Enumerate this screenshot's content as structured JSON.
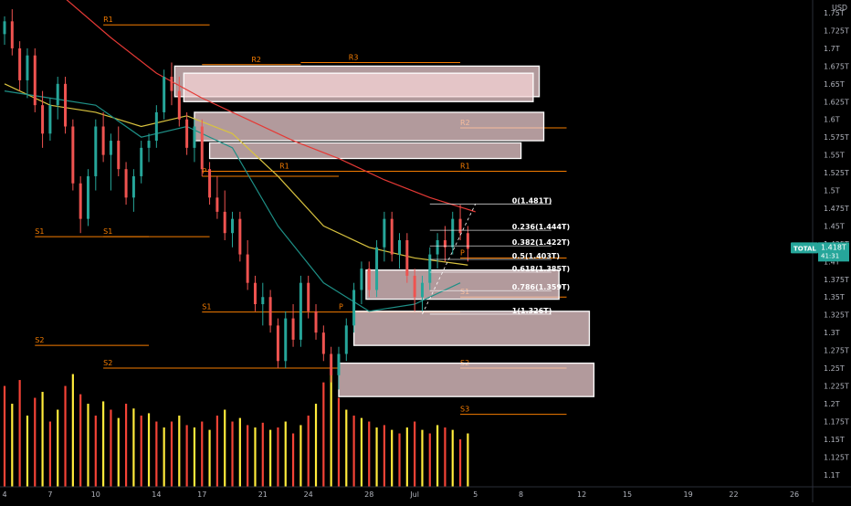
{
  "colors": {
    "background": "#000000",
    "up": "#26a69a",
    "down": "#ef5350",
    "level_line": "#f57c00",
    "level_text": "#f57c00",
    "zone_fill": "#f6d5d8",
    "zone_stroke": "#ffffff",
    "ma_yellow": "#d9c33f",
    "ma_teal": "#1e8f86",
    "ma_red": "#e53935",
    "vol_red": "#f44336",
    "vol_yellow": "#ffeb3b",
    "axis_text": "#b2b5be",
    "fib_text": "#ffffff",
    "fib_line": "#ffffff",
    "tag_bg": "#26a69a"
  },
  "chart_data": {
    "type": "candlestick",
    "currency": "USD",
    "y_axis": {
      "ticks": [
        "1.1T",
        "1.125T",
        "1.15T",
        "1.175T",
        "1.2T",
        "1.225T",
        "1.25T",
        "1.275T",
        "1.3T",
        "1.325T",
        "1.35T",
        "1.375T",
        "1.4T",
        "1.425T",
        "1.45T",
        "1.475T",
        "1.5T",
        "1.525T",
        "1.55T",
        "1.575T",
        "1.6T",
        "1.625T",
        "1.65T",
        "1.675T",
        "1.7T",
        "1.725T",
        "1.75T"
      ],
      "values": [
        1.1,
        1.125,
        1.15,
        1.175,
        1.2,
        1.225,
        1.25,
        1.275,
        1.3,
        1.325,
        1.35,
        1.375,
        1.4,
        1.425,
        1.45,
        1.475,
        1.5,
        1.525,
        1.55,
        1.575,
        1.6,
        1.625,
        1.65,
        1.675,
        1.7,
        1.725,
        1.75
      ],
      "range": [
        1.083,
        1.768
      ]
    },
    "x_axis": {
      "ticks": [
        "4",
        "7",
        "10",
        "14",
        "17",
        "21",
        "24",
        "28",
        "Jul",
        "5",
        "8",
        "12",
        "15",
        "19",
        "22",
        "26"
      ],
      "day_index": [
        0,
        3,
        6,
        10,
        13,
        17,
        20,
        24,
        27,
        31,
        34,
        38,
        41,
        45,
        48,
        52
      ],
      "range_days": [
        -0.3,
        53.2
      ]
    },
    "symbol_tag": {
      "name": "TOTAL",
      "value": "1.418T",
      "countdown": "41:31",
      "price": 1.418
    },
    "candles": [
      [
        0.0,
        1.72,
        1.745,
        1.705,
        1.738
      ],
      [
        0.5,
        1.738,
        1.755,
        1.69,
        1.7
      ],
      [
        1.0,
        1.7,
        1.71,
        1.64,
        1.655
      ],
      [
        1.5,
        1.655,
        1.7,
        1.63,
        1.69
      ],
      [
        2.0,
        1.69,
        1.7,
        1.61,
        1.62
      ],
      [
        2.5,
        1.62,
        1.64,
        1.56,
        1.58
      ],
      [
        3.0,
        1.58,
        1.63,
        1.57,
        1.62
      ],
      [
        3.5,
        1.62,
        1.66,
        1.6,
        1.65
      ],
      [
        4.0,
        1.65,
        1.66,
        1.58,
        1.59
      ],
      [
        4.5,
        1.59,
        1.6,
        1.5,
        1.51
      ],
      [
        5.0,
        1.51,
        1.52,
        1.44,
        1.46
      ],
      [
        5.5,
        1.46,
        1.53,
        1.45,
        1.52
      ],
      [
        6.0,
        1.52,
        1.6,
        1.5,
        1.59
      ],
      [
        6.5,
        1.59,
        1.61,
        1.54,
        1.55
      ],
      [
        7.0,
        1.55,
        1.58,
        1.5,
        1.57
      ],
      [
        7.5,
        1.57,
        1.59,
        1.52,
        1.53
      ],
      [
        8.0,
        1.53,
        1.54,
        1.48,
        1.49
      ],
      [
        8.5,
        1.49,
        1.53,
        1.47,
        1.52
      ],
      [
        9.0,
        1.52,
        1.57,
        1.51,
        1.56
      ],
      [
        9.5,
        1.56,
        1.58,
        1.54,
        1.57
      ],
      [
        10.0,
        1.57,
        1.62,
        1.56,
        1.61
      ],
      [
        10.5,
        1.61,
        1.67,
        1.6,
        1.66
      ],
      [
        11.0,
        1.66,
        1.68,
        1.62,
        1.64
      ],
      [
        11.5,
        1.64,
        1.66,
        1.59,
        1.6
      ],
      [
        12.0,
        1.6,
        1.61,
        1.55,
        1.56
      ],
      [
        12.5,
        1.56,
        1.6,
        1.54,
        1.59
      ],
      [
        13.0,
        1.59,
        1.6,
        1.52,
        1.53
      ],
      [
        13.5,
        1.53,
        1.54,
        1.48,
        1.49
      ],
      [
        14.0,
        1.49,
        1.52,
        1.46,
        1.47
      ],
      [
        14.5,
        1.47,
        1.5,
        1.43,
        1.44
      ],
      [
        15.0,
        1.44,
        1.47,
        1.42,
        1.46
      ],
      [
        15.5,
        1.46,
        1.47,
        1.4,
        1.41
      ],
      [
        16.0,
        1.41,
        1.43,
        1.36,
        1.37
      ],
      [
        16.5,
        1.37,
        1.38,
        1.33,
        1.34
      ],
      [
        17.0,
        1.34,
        1.37,
        1.31,
        1.35
      ],
      [
        17.5,
        1.35,
        1.36,
        1.3,
        1.31
      ],
      [
        18.0,
        1.31,
        1.32,
        1.25,
        1.26
      ],
      [
        18.5,
        1.26,
        1.33,
        1.25,
        1.32
      ],
      [
        19.0,
        1.32,
        1.34,
        1.28,
        1.29
      ],
      [
        19.5,
        1.29,
        1.38,
        1.28,
        1.37
      ],
      [
        20.0,
        1.37,
        1.38,
        1.32,
        1.33
      ],
      [
        20.5,
        1.33,
        1.34,
        1.29,
        1.3
      ],
      [
        21.0,
        1.3,
        1.31,
        1.26,
        1.27
      ],
      [
        21.5,
        1.27,
        1.28,
        1.23,
        1.24
      ],
      [
        22.0,
        1.24,
        1.28,
        1.22,
        1.27
      ],
      [
        22.5,
        1.27,
        1.32,
        1.26,
        1.31
      ],
      [
        23.0,
        1.31,
        1.37,
        1.3,
        1.36
      ],
      [
        23.5,
        1.36,
        1.4,
        1.34,
        1.39
      ],
      [
        24.0,
        1.39,
        1.4,
        1.35,
        1.36
      ],
      [
        24.5,
        1.36,
        1.43,
        1.35,
        1.42
      ],
      [
        25.0,
        1.42,
        1.47,
        1.4,
        1.46
      ],
      [
        25.5,
        1.46,
        1.47,
        1.4,
        1.41
      ],
      [
        26.0,
        1.41,
        1.44,
        1.39,
        1.43
      ],
      [
        26.5,
        1.43,
        1.44,
        1.37,
        1.38
      ],
      [
        27.0,
        1.38,
        1.39,
        1.33,
        1.35
      ],
      [
        27.5,
        1.35,
        1.38,
        1.33,
        1.37
      ],
      [
        28.0,
        1.37,
        1.42,
        1.36,
        1.41
      ],
      [
        28.5,
        1.41,
        1.44,
        1.39,
        1.43
      ],
      [
        29.0,
        1.43,
        1.45,
        1.4,
        1.42
      ],
      [
        29.5,
        1.42,
        1.47,
        1.41,
        1.46
      ],
      [
        30.0,
        1.46,
        1.48,
        1.43,
        1.44
      ],
      [
        30.5,
        1.44,
        1.45,
        1.4,
        1.418
      ]
    ],
    "moving_averages": [
      {
        "color_key": "ma_red",
        "points": [
          [
            4.0,
            1.77
          ],
          [
            7.0,
            1.715
          ],
          [
            10.0,
            1.665
          ],
          [
            13.0,
            1.63
          ],
          [
            16.0,
            1.6
          ],
          [
            19.0,
            1.57
          ],
          [
            22.0,
            1.545
          ],
          [
            25.0,
            1.515
          ],
          [
            28.0,
            1.49
          ],
          [
            31.0,
            1.47
          ]
        ]
      },
      {
        "color_key": "ma_yellow",
        "points": [
          [
            0.0,
            1.65
          ],
          [
            3.0,
            1.62
          ],
          [
            6.0,
            1.61
          ],
          [
            9.0,
            1.59
          ],
          [
            12.0,
            1.605
          ],
          [
            15.0,
            1.58
          ],
          [
            18.0,
            1.52
          ],
          [
            21.0,
            1.45
          ],
          [
            24.0,
            1.42
          ],
          [
            27.0,
            1.405
          ],
          [
            30.5,
            1.395
          ]
        ]
      },
      {
        "color_key": "ma_teal",
        "points": [
          [
            0.0,
            1.64
          ],
          [
            3.0,
            1.63
          ],
          [
            6.0,
            1.62
          ],
          [
            9.0,
            1.575
          ],
          [
            12.0,
            1.59
          ],
          [
            15.0,
            1.56
          ],
          [
            18.0,
            1.45
          ],
          [
            21.0,
            1.37
          ],
          [
            24.0,
            1.33
          ],
          [
            27.0,
            1.34
          ],
          [
            30.0,
            1.37
          ]
        ]
      }
    ],
    "pivot_levels": [
      {
        "label": "R1",
        "y": 1.733,
        "x_start": 6.5,
        "x_end": 13.5,
        "label_at": "start"
      },
      {
        "label": "R2",
        "y": 1.677,
        "x_start": 13.0,
        "x_end": 19.5,
        "label_at": "mid"
      },
      {
        "label": "R3",
        "y": 1.68,
        "x_start": 19.5,
        "x_end": 30.0,
        "label_at": "start_mid"
      },
      {
        "label": "R1",
        "y": 1.527,
        "x_start": 13.0,
        "x_end": 30.0,
        "label_at": "start_mid"
      },
      {
        "label": "R1",
        "y": 1.527,
        "x_start": 30.0,
        "x_end": 37.0,
        "label_at": "start"
      },
      {
        "label": "R2",
        "y": 1.588,
        "x_start": 30.0,
        "x_end": 37.0,
        "label_at": "start"
      },
      {
        "label": "P",
        "y": 1.52,
        "x_start": 13.0,
        "x_end": 22.0,
        "label_at": "start"
      },
      {
        "label": "P",
        "y": 1.405,
        "x_start": 30.0,
        "x_end": 37.0,
        "label_at": "start"
      },
      {
        "label": "P",
        "y": 1.329,
        "x_start": 22.0,
        "x_end": 30.0,
        "label_at": "start"
      },
      {
        "label": "S1",
        "y": 1.329,
        "x_start": 13.0,
        "x_end": 22.0,
        "label_at": "start"
      },
      {
        "label": "S1",
        "y": 1.435,
        "x_start": 2.0,
        "x_end": 9.5,
        "label_at": "start"
      },
      {
        "label": "S1",
        "y": 1.435,
        "x_start": 6.5,
        "x_end": 13.5,
        "label_at": "start"
      },
      {
        "label": "S1",
        "y": 1.35,
        "x_start": 30.0,
        "x_end": 37.0,
        "label_at": "start"
      },
      {
        "label": "S2",
        "y": 1.282,
        "x_start": 2.0,
        "x_end": 9.5,
        "label_at": "start"
      },
      {
        "label": "S2",
        "y": 1.25,
        "x_start": 6.5,
        "x_end": 22.0,
        "label_at": "start"
      },
      {
        "label": "S2",
        "y": 1.25,
        "x_start": 30.0,
        "x_end": 37.0,
        "label_at": "start"
      },
      {
        "label": "S3",
        "y": 1.185,
        "x_start": 30.0,
        "x_end": 37.0,
        "label_at": "start"
      }
    ],
    "supply_zones": [
      {
        "top": 1.675,
        "bottom": 1.632,
        "x_start": 11.2,
        "x_end": 35.2
      },
      {
        "top": 1.665,
        "bottom": 1.625,
        "x_start": 11.8,
        "x_end": 34.8
      },
      {
        "top": 1.61,
        "bottom": 1.57,
        "x_start": 12.5,
        "x_end": 35.5
      },
      {
        "top": 1.567,
        "bottom": 1.545,
        "x_start": 13.5,
        "x_end": 34.0
      },
      {
        "top": 1.388,
        "bottom": 1.347,
        "x_start": 23.8,
        "x_end": 36.5
      },
      {
        "top": 1.33,
        "bottom": 1.282,
        "x_start": 23.0,
        "x_end": 38.5
      },
      {
        "top": 1.257,
        "bottom": 1.21,
        "x_start": 22.0,
        "x_end": 38.8
      }
    ],
    "fibonacci": {
      "x_start": 28.0,
      "x_end": 36.0,
      "levels": [
        {
          "label": "0(1.481T)",
          "value": 1.481
        },
        {
          "label": "0.236(1.444T)",
          "value": 1.444
        },
        {
          "label": "0.382(1.422T)",
          "value": 1.422
        },
        {
          "label": "0.5(1.403T)",
          "value": 1.403
        },
        {
          "label": "0.618(1.385T)",
          "value": 1.385
        },
        {
          "label": "0.786(1.359T)",
          "value": 1.359
        },
        {
          "label": "1(1.326T)",
          "value": 1.326
        }
      ]
    },
    "volume_pane": {
      "bottom_value": 1.083,
      "max_height_value": 0.167,
      "bars": [
        0.85,
        0.7,
        0.9,
        0.6,
        0.75,
        0.8,
        0.55,
        0.65,
        0.85,
        0.95,
        0.78,
        0.7,
        0.6,
        0.72,
        0.65,
        0.58,
        0.7,
        0.66,
        0.6,
        0.62,
        0.55,
        0.5,
        0.55,
        0.6,
        0.52,
        0.5,
        0.55,
        0.48,
        0.6,
        0.65,
        0.55,
        0.58,
        0.52,
        0.5,
        0.54,
        0.48,
        0.5,
        0.55,
        0.45,
        0.52,
        0.6,
        0.7,
        0.88,
        0.95,
        0.75,
        0.65,
        0.6,
        0.58,
        0.55,
        0.5,
        0.52,
        0.48,
        0.45,
        0.5,
        0.55,
        0.48,
        0.45,
        0.52,
        0.5,
        0.48,
        0.4,
        0.45
      ]
    }
  }
}
